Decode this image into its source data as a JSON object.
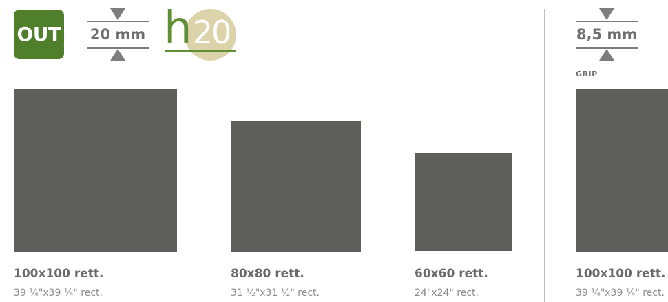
{
  "badge": {
    "label": "OUT",
    "color": "#4f7f2a"
  },
  "left_panel": {
    "thickness": {
      "value": "20 mm",
      "icons": [
        "triangle-down-icon",
        "triangle-up-icon"
      ]
    },
    "logo": {
      "prefix": "h",
      "number": "20",
      "brand_color": "#5e8f35",
      "circle_color": "#ddd3ab"
    },
    "sizes": [
      {
        "label": "100x100 rett.",
        "sub": "39 ¼\"x39 ¼\" rect."
      },
      {
        "label": "80x80 rett.",
        "sub": "31 ½\"x31 ½\" rect."
      },
      {
        "label": "60x60 rett.",
        "sub": "24\"x24\" rect."
      }
    ]
  },
  "right_panel": {
    "thickness": {
      "value": "8,5 mm"
    },
    "finish": "GRIP",
    "sizes": [
      {
        "label": "100x100 rett.",
        "sub": "39 ¼\"x39 ¼\" rect."
      }
    ]
  },
  "tile_color": "#5e5e5c"
}
